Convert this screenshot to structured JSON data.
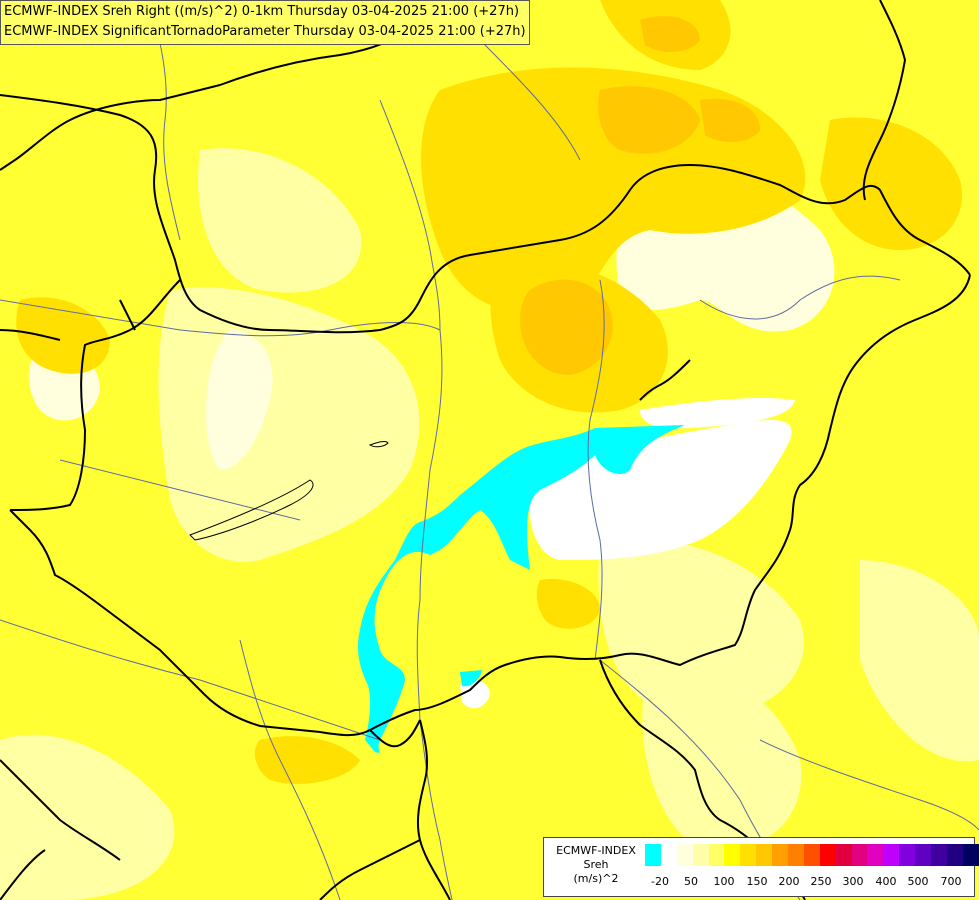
{
  "header": {
    "line1": "ECMWF-INDEX Sreh Right ((m/s)^2) 0-1km Thursday 03-04-2025 21:00 (+27h)",
    "line2": "ECMWF-INDEX SignificantTornadoParameter Thursday 03-04-2025 21:00 (+27h)"
  },
  "legend": {
    "title_lines": [
      "ECMWF-INDEX",
      "Sreh",
      "(m/s)^2"
    ],
    "colors": [
      "#00ffff",
      "#ffffff",
      "#ffffdd",
      "#ffffaa",
      "#ffff66",
      "#ffff00",
      "#ffe000",
      "#ffc800",
      "#ffa000",
      "#ff8000",
      "#ff5000",
      "#ff0000",
      "#e00040",
      "#e00080",
      "#e000c0",
      "#c000ff",
      "#8000e0",
      "#6000c0",
      "#4000a0",
      "#200080",
      "#000060"
    ],
    "tick_labels": [
      "-20",
      "50",
      "100",
      "150",
      "200",
      "250",
      "300",
      "400",
      "500",
      "700"
    ]
  },
  "map": {
    "colors": {
      "base": "#ffff33",
      "light": "#ffffaa",
      "pale": "#ffffdd",
      "white": "#ffffff",
      "orange_light": "#ffe000",
      "orange": "#ffc800",
      "cyan": "#00ffff",
      "border": "#000000",
      "river": "#5f6ba0"
    }
  }
}
